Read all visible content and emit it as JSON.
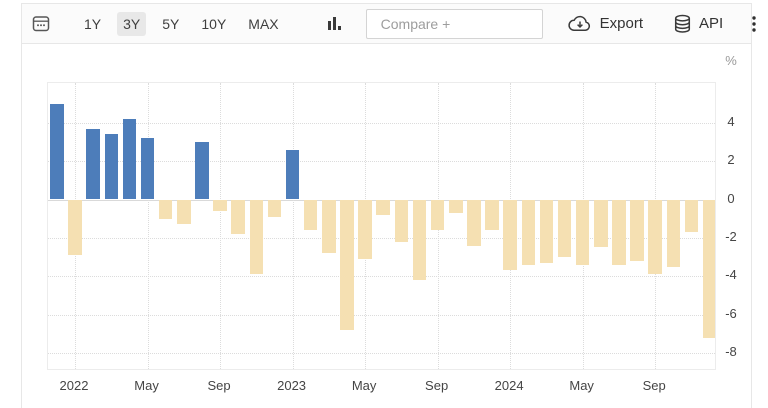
{
  "toolbar": {
    "calendar_icon": "calendar-date-picker",
    "ranges": [
      "1Y",
      "3Y",
      "5Y",
      "10Y",
      "MAX"
    ],
    "active_range": "3Y",
    "chart_type_icon": "column-chart",
    "compare": {
      "placeholder": "Compare +",
      "value": ""
    },
    "export_label": "Export",
    "api_label": "API",
    "menu_icon": "kebab-menu"
  },
  "chart_data": {
    "type": "bar",
    "title": "",
    "unit": "%",
    "y_axis_label": "%",
    "x": [
      "Dec 2021",
      "Jan 2022",
      "Feb 2022",
      "Mar 2022",
      "Apr 2022",
      "May 2022",
      "Jun 2022",
      "Jul 2022",
      "Aug 2022",
      "Sep 2022",
      "Oct 2022",
      "Nov 2022",
      "Dec 2022",
      "Jan 2023",
      "Feb 2023",
      "Mar 2023",
      "Apr 2023",
      "May 2023",
      "Jun 2023",
      "Jul 2023",
      "Aug 2023",
      "Sep 2023",
      "Oct 2023",
      "Nov 2023",
      "Dec 2023",
      "Jan 2024",
      "Feb 2024",
      "Mar 2024",
      "Apr 2024",
      "May 2024",
      "Jun 2024",
      "Jul 2024",
      "Aug 2024",
      "Sep 2024",
      "Oct 2024",
      "Nov 2024",
      "Dec 2024"
    ],
    "values": [
      5.0,
      -2.9,
      3.7,
      3.4,
      4.2,
      3.2,
      -1.0,
      -1.3,
      3.0,
      -0.6,
      -1.8,
      -3.9,
      -0.9,
      2.6,
      -1.6,
      -2.8,
      -6.8,
      -3.1,
      -0.8,
      -2.2,
      -4.2,
      -1.6,
      -0.7,
      -2.4,
      -1.6,
      -3.7,
      -3.4,
      -3.3,
      -3.0,
      -3.4,
      -2.5,
      -3.4,
      -3.2,
      -3.9,
      -3.5,
      -1.7,
      -7.2
    ],
    "x_tick_labels": [
      "2022",
      "May",
      "Sep",
      "2023",
      "May",
      "Sep",
      "2024",
      "May",
      "Sep"
    ],
    "x_tick_positions": [
      1,
      5,
      9,
      13,
      17,
      21,
      25,
      29,
      33
    ],
    "y_ticks": [
      4,
      2,
      0,
      -2,
      -4,
      -6,
      -8
    ],
    "ylim": [
      -9,
      6.1
    ],
    "grid": "dotted",
    "legend": "none",
    "positive_color": "#4d7dba",
    "negative_color": "#f5e0b2"
  }
}
